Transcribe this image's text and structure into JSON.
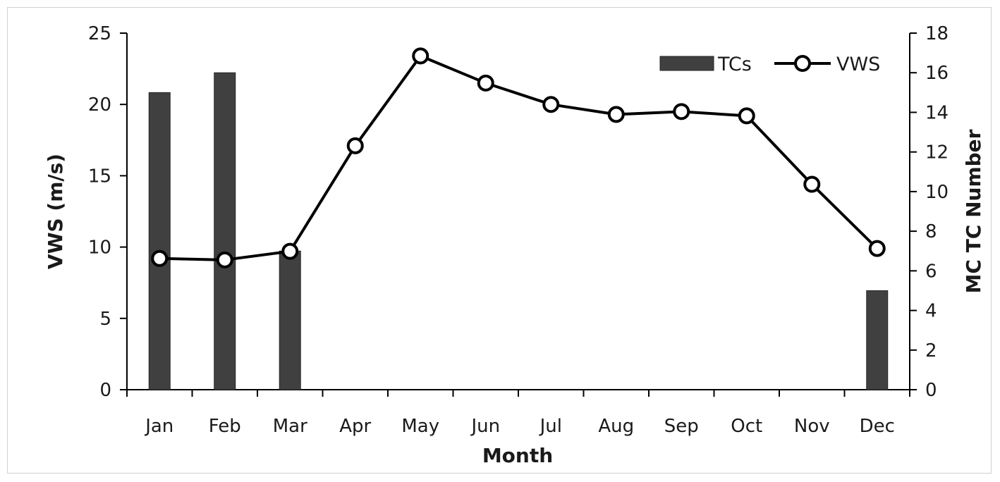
{
  "chart_data": {
    "type": "bar+line",
    "categories": [
      "Jan",
      "Feb",
      "Mar",
      "Apr",
      "May",
      "Jun",
      "Jul",
      "Aug",
      "Sep",
      "Oct",
      "Nov",
      "Dec"
    ],
    "xlabel": "Month",
    "ylabel_left": "VWS (m/s)",
    "ylabel_right": "MC TC Number",
    "ylim_left": [
      0,
      25
    ],
    "yticks_left": [
      "0",
      "5",
      "10",
      "15",
      "20",
      "25"
    ],
    "ylim_right": [
      0,
      18
    ],
    "yticks_right": [
      "0",
      "2",
      "4",
      "6",
      "8",
      "10",
      "12",
      "14",
      "16",
      "18"
    ],
    "grid": false,
    "legend_position": "top-right",
    "series": [
      {
        "name": "TCs",
        "type": "bar",
        "axis": "right",
        "color": "#404040",
        "values": [
          15,
          16,
          7,
          0,
          0,
          0,
          0,
          0,
          0,
          0,
          0,
          5
        ]
      },
      {
        "name": "VWS",
        "type": "line",
        "axis": "left",
        "color": "#000000",
        "marker": "open-circle",
        "values": [
          9.2,
          9.1,
          9.7,
          17.1,
          23.4,
          21.5,
          20.0,
          19.3,
          19.5,
          19.2,
          14.4,
          9.9
        ]
      }
    ]
  }
}
